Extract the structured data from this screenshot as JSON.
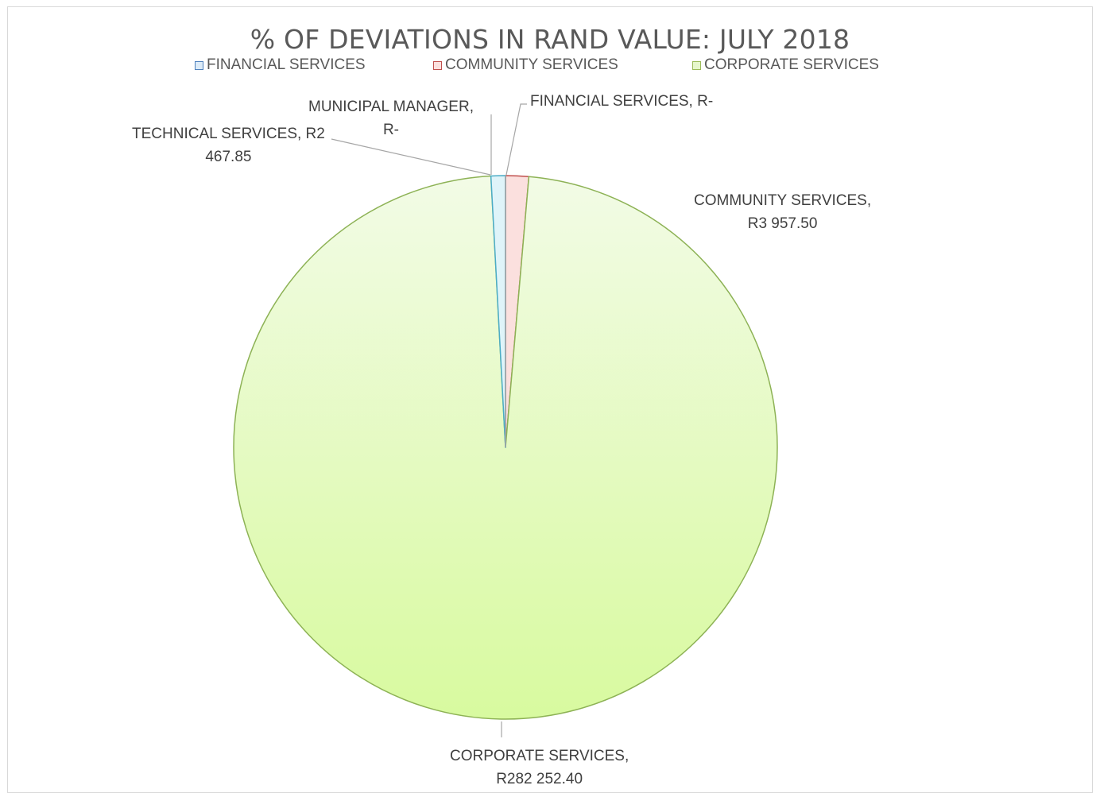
{
  "chart_data": {
    "type": "pie",
    "title": "% OF DEVIATIONS IN RAND VALUE: JULY 2018",
    "legend": [
      {
        "name": "FINANCIAL SERVICES",
        "fill": "#dcebf8",
        "stroke": "#4f81bd"
      },
      {
        "name": "COMMUNITY SERVICES",
        "fill": "#fbe0de",
        "stroke": "#c0504d"
      },
      {
        "name": "CORPORATE SERVICES",
        "fill": "#e6f7cc",
        "stroke": "#9bbb59"
      }
    ],
    "legend_position": "top",
    "slices": [
      {
        "name": "FINANCIAL SERVICES",
        "value": 0,
        "fill": "#dcebf8",
        "stroke": "#4f81bd"
      },
      {
        "name": "COMMUNITY SERVICES",
        "value": 3957.5,
        "fill": "#fbe0de",
        "stroke": "#c0504d"
      },
      {
        "name": "CORPORATE SERVICES",
        "value": 282252.4,
        "fill": "#e6f7cc",
        "stroke": "#8db255"
      },
      {
        "name": "TECHNICAL SERVICES",
        "value": 2467.85,
        "fill": "#dff4f9",
        "stroke": "#4bacc6"
      },
      {
        "name": "MUNICIPAL MANAGER",
        "value": 0,
        "fill": "#eeeeee",
        "stroke": "#a5a5a5"
      }
    ],
    "data_labels": {
      "financial": [
        "FINANCIAL SERVICES,  R-"
      ],
      "community": [
        "COMMUNITY SERVICES,",
        "R3 957.50"
      ],
      "corporate": [
        "CORPORATE SERVICES,",
        "R282 252.40"
      ],
      "technical": [
        "TECHNICAL SERVICES,  R2",
        "467.85"
      ],
      "municipal": [
        "MUNICIPAL MANAGER,",
        "R-"
      ]
    }
  }
}
